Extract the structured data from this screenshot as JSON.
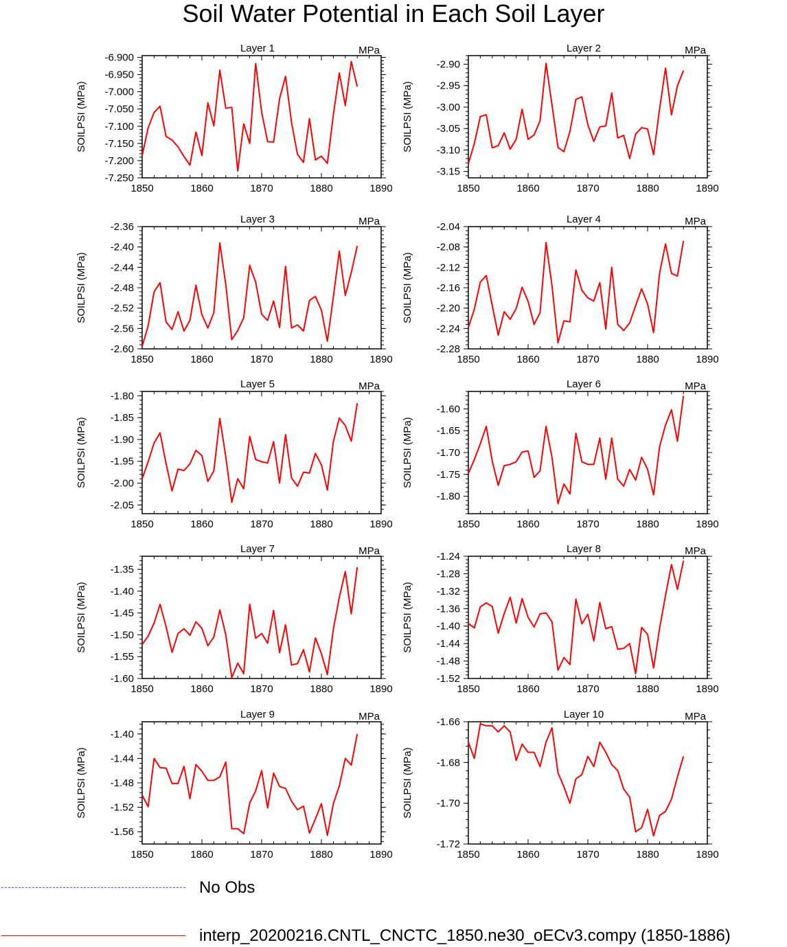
{
  "title": "Soil Water Potential in Each Soil Layer",
  "legend": [
    {
      "label": "No Obs",
      "color": "#4a5cf0",
      "style": "dashed"
    },
    {
      "label": "interp_20200216.CNTL_CNCTC_1850.ne30_oECv3.compy (1850-1886)",
      "color": "#ff0000",
      "style": "solid"
    }
  ],
  "chart_data": [
    {
      "type": "line",
      "title": "Layer 1",
      "units": "MPa",
      "ylabel": "SOILPSI  (MPa)",
      "ylim": [
        -7.25,
        -6.895
      ],
      "yticks": [
        -6.9,
        -6.95,
        -7.0,
        -7.05,
        -7.1,
        -7.15,
        -7.2,
        -7.25
      ],
      "ytick_labels": [
        "-6.900",
        "-6.950",
        "-7.000",
        "-7.050",
        "-7.100",
        "-7.150",
        "-7.200",
        "-7.250"
      ],
      "xlim": [
        1850,
        1890
      ],
      "xticks": [
        1850,
        1860,
        1870,
        1880,
        1890
      ],
      "series_color": "#ff0000",
      "x": [
        1850,
        1851,
        1852,
        1853,
        1854,
        1855,
        1856,
        1857,
        1858,
        1859,
        1860,
        1861,
        1862,
        1863,
        1864,
        1865,
        1866,
        1867,
        1868,
        1869,
        1870,
        1871,
        1872,
        1873,
        1874,
        1875,
        1876,
        1877,
        1878,
        1879,
        1880,
        1881,
        1882,
        1883,
        1884,
        1885,
        1886
      ],
      "values": [
        -7.185,
        -7.105,
        -7.06,
        -7.042,
        -7.13,
        -7.14,
        -7.16,
        -7.188,
        -7.213,
        -7.117,
        -7.185,
        -7.032,
        -7.099,
        -6.937,
        -7.048,
        -7.045,
        -7.23,
        -7.093,
        -7.15,
        -6.918,
        -7.059,
        -7.145,
        -7.146,
        -7.02,
        -6.955,
        -7.089,
        -7.182,
        -7.205,
        -7.078,
        -7.198,
        -7.187,
        -7.208,
        -7.067,
        -6.945,
        -7.04,
        -6.912,
        -6.985
      ]
    },
    {
      "type": "line",
      "title": "Layer 2",
      "units": "MPa",
      "ylabel": "SOILPSI  (MPa)",
      "ylim": [
        -3.165,
        -2.88
      ],
      "yticks": [
        -2.9,
        -2.95,
        -3.0,
        -3.05,
        -3.1,
        -3.15
      ],
      "ytick_labels": [
        "-2.90",
        "-2.95",
        "-3.00",
        "-3.05",
        "-3.10",
        "-3.15"
      ],
      "xlim": [
        1850,
        1890
      ],
      "xticks": [
        1850,
        1860,
        1870,
        1880,
        1890
      ],
      "series_color": "#ff0000",
      "x": [
        1850,
        1851,
        1852,
        1853,
        1854,
        1855,
        1856,
        1857,
        1858,
        1859,
        1860,
        1861,
        1862,
        1863,
        1864,
        1865,
        1866,
        1867,
        1868,
        1869,
        1870,
        1871,
        1872,
        1873,
        1874,
        1875,
        1876,
        1877,
        1878,
        1879,
        1880,
        1881,
        1882,
        1883,
        1884,
        1885,
        1886
      ],
      "values": [
        -3.132,
        -3.085,
        -3.022,
        -3.018,
        -3.095,
        -3.09,
        -3.06,
        -3.098,
        -3.075,
        -3.005,
        -3.075,
        -3.065,
        -3.032,
        -2.898,
        -2.995,
        -3.094,
        -3.104,
        -3.057,
        -2.982,
        -2.976,
        -3.041,
        -3.08,
        -3.046,
        -3.044,
        -2.967,
        -3.072,
        -3.066,
        -3.12,
        -3.063,
        -3.048,
        -3.051,
        -3.111,
        -3.005,
        -2.909,
        -3.018,
        -2.95,
        -2.915
      ]
    },
    {
      "type": "line",
      "title": "Layer 3",
      "units": "MPa",
      "ylabel": "SOILPSI  (MPa)",
      "ylim": [
        -2.6,
        -2.36
      ],
      "yticks": [
        -2.36,
        -2.4,
        -2.44,
        -2.48,
        -2.52,
        -2.56,
        -2.6
      ],
      "ytick_labels": [
        "-2.36",
        "-2.40",
        "-2.44",
        "-2.48",
        "-2.52",
        "-2.56",
        "-2.60"
      ],
      "xlim": [
        1850,
        1890
      ],
      "xticks": [
        1850,
        1860,
        1870,
        1880,
        1890
      ],
      "series_color": "#ff0000",
      "x": [
        1850,
        1851,
        1852,
        1853,
        1854,
        1855,
        1856,
        1857,
        1858,
        1859,
        1860,
        1861,
        1862,
        1863,
        1864,
        1865,
        1866,
        1867,
        1868,
        1869,
        1870,
        1871,
        1872,
        1873,
        1874,
        1875,
        1876,
        1877,
        1878,
        1879,
        1880,
        1881,
        1882,
        1883,
        1884,
        1885,
        1886
      ],
      "values": [
        -2.595,
        -2.555,
        -2.488,
        -2.47,
        -2.547,
        -2.562,
        -2.527,
        -2.565,
        -2.544,
        -2.475,
        -2.533,
        -2.559,
        -2.529,
        -2.392,
        -2.474,
        -2.582,
        -2.564,
        -2.539,
        -2.436,
        -2.469,
        -2.532,
        -2.544,
        -2.506,
        -2.558,
        -2.438,
        -2.559,
        -2.553,
        -2.565,
        -2.505,
        -2.497,
        -2.524,
        -2.585,
        -2.498,
        -2.408,
        -2.495,
        -2.45,
        -2.398
      ]
    },
    {
      "type": "line",
      "title": "Layer 4",
      "units": "MPa",
      "ylabel": "SOILPSI  (MPa)",
      "ylim": [
        -2.28,
        -2.04
      ],
      "yticks": [
        -2.04,
        -2.08,
        -2.12,
        -2.16,
        -2.2,
        -2.24,
        -2.28
      ],
      "ytick_labels": [
        "-2.04",
        "-2.08",
        "-2.12",
        "-2.16",
        "-2.20",
        "-2.24",
        "-2.28"
      ],
      "xlim": [
        1850,
        1890
      ],
      "xticks": [
        1850,
        1860,
        1870,
        1880,
        1890
      ],
      "series_color": "#ff0000",
      "x": [
        1850,
        1851,
        1852,
        1853,
        1854,
        1855,
        1856,
        1857,
        1858,
        1859,
        1860,
        1861,
        1862,
        1863,
        1864,
        1865,
        1866,
        1867,
        1868,
        1869,
        1870,
        1871,
        1872,
        1873,
        1874,
        1875,
        1876,
        1877,
        1878,
        1879,
        1880,
        1881,
        1882,
        1883,
        1884,
        1885,
        1886
      ],
      "values": [
        -2.238,
        -2.202,
        -2.149,
        -2.136,
        -2.195,
        -2.253,
        -2.207,
        -2.222,
        -2.201,
        -2.159,
        -2.187,
        -2.232,
        -2.209,
        -2.071,
        -2.156,
        -2.268,
        -2.225,
        -2.227,
        -2.125,
        -2.165,
        -2.18,
        -2.186,
        -2.15,
        -2.241,
        -2.12,
        -2.232,
        -2.244,
        -2.229,
        -2.195,
        -2.162,
        -2.192,
        -2.248,
        -2.132,
        -2.074,
        -2.132,
        -2.137,
        -2.068
      ]
    },
    {
      "type": "line",
      "title": "Layer 5",
      "units": "MPa",
      "ylabel": "SOILPSI  (MPa)",
      "ylim": [
        -2.07,
        -1.79
      ],
      "yticks": [
        -1.8,
        -1.85,
        -1.9,
        -1.95,
        -2.0,
        -2.05
      ],
      "ytick_labels": [
        "-1.80",
        "-1.85",
        "-1.90",
        "-1.95",
        "-2.00",
        "-2.05"
      ],
      "xlim": [
        1850,
        1890
      ],
      "xticks": [
        1850,
        1860,
        1870,
        1880,
        1890
      ],
      "series_color": "#ff0000",
      "x": [
        1850,
        1851,
        1852,
        1853,
        1854,
        1855,
        1856,
        1857,
        1858,
        1859,
        1860,
        1861,
        1862,
        1863,
        1864,
        1865,
        1866,
        1867,
        1868,
        1869,
        1870,
        1871,
        1872,
        1873,
        1874,
        1875,
        1876,
        1877,
        1878,
        1879,
        1880,
        1881,
        1882,
        1883,
        1884,
        1885,
        1886
      ],
      "values": [
        -1.99,
        -1.951,
        -1.908,
        -1.885,
        -1.955,
        -2.018,
        -1.968,
        -1.971,
        -1.956,
        -1.925,
        -1.937,
        -1.996,
        -1.972,
        -1.852,
        -1.94,
        -2.044,
        -1.99,
        -2.013,
        -1.893,
        -1.946,
        -1.951,
        -1.954,
        -1.905,
        -2.0,
        -1.889,
        -1.988,
        -2.007,
        -1.975,
        -1.977,
        -1.932,
        -1.958,
        -2.016,
        -1.905,
        -1.851,
        -1.868,
        -1.904,
        -1.817
      ]
    },
    {
      "type": "line",
      "title": "Layer 6",
      "units": "MPa",
      "ylabel": "SOILPSI  (MPa)",
      "ylim": [
        -1.84,
        -1.56
      ],
      "yticks": [
        -1.6,
        -1.65,
        -1.7,
        -1.75,
        -1.8
      ],
      "ytick_labels": [
        "-1.60",
        "-1.65",
        "-1.70",
        "-1.75",
        "-1.80"
      ],
      "xlim": [
        1850,
        1890
      ],
      "xticks": [
        1850,
        1860,
        1870,
        1880,
        1890
      ],
      "series_color": "#ff0000",
      "x": [
        1850,
        1851,
        1852,
        1853,
        1854,
        1855,
        1856,
        1857,
        1858,
        1859,
        1860,
        1861,
        1862,
        1863,
        1864,
        1865,
        1866,
        1867,
        1868,
        1869,
        1870,
        1871,
        1872,
        1873,
        1874,
        1875,
        1876,
        1877,
        1878,
        1879,
        1880,
        1881,
        1882,
        1883,
        1884,
        1885,
        1886
      ],
      "values": [
        -1.748,
        -1.716,
        -1.68,
        -1.64,
        -1.72,
        -1.775,
        -1.73,
        -1.727,
        -1.721,
        -1.699,
        -1.696,
        -1.757,
        -1.742,
        -1.64,
        -1.711,
        -1.817,
        -1.772,
        -1.795,
        -1.656,
        -1.721,
        -1.727,
        -1.727,
        -1.667,
        -1.761,
        -1.667,
        -1.761,
        -1.777,
        -1.739,
        -1.763,
        -1.711,
        -1.738,
        -1.797,
        -1.687,
        -1.637,
        -1.602,
        -1.674,
        -1.57
      ]
    },
    {
      "type": "line",
      "title": "Layer 7",
      "units": "MPa",
      "ylabel": "SOILPSI  (MPa)",
      "ylim": [
        -1.6,
        -1.32
      ],
      "yticks": [
        -1.35,
        -1.4,
        -1.45,
        -1.5,
        -1.55,
        -1.6
      ],
      "ytick_labels": [
        "-1.35",
        "-1.40",
        "-1.45",
        "-1.50",
        "-1.55",
        "-1.60"
      ],
      "xlim": [
        1850,
        1890
      ],
      "xticks": [
        1850,
        1860,
        1870,
        1880,
        1890
      ],
      "series_color": "#ff0000",
      "x": [
        1850,
        1851,
        1852,
        1853,
        1854,
        1855,
        1856,
        1857,
        1858,
        1859,
        1860,
        1861,
        1862,
        1863,
        1864,
        1865,
        1866,
        1867,
        1868,
        1869,
        1870,
        1871,
        1872,
        1873,
        1874,
        1875,
        1876,
        1877,
        1878,
        1879,
        1880,
        1881,
        1882,
        1883,
        1884,
        1885,
        1886
      ],
      "values": [
        -1.522,
        -1.503,
        -1.473,
        -1.43,
        -1.481,
        -1.54,
        -1.497,
        -1.486,
        -1.501,
        -1.47,
        -1.485,
        -1.525,
        -1.505,
        -1.443,
        -1.5,
        -1.598,
        -1.565,
        -1.589,
        -1.43,
        -1.508,
        -1.497,
        -1.519,
        -1.444,
        -1.541,
        -1.477,
        -1.569,
        -1.566,
        -1.534,
        -1.585,
        -1.507,
        -1.543,
        -1.591,
        -1.487,
        -1.414,
        -1.355,
        -1.452,
        -1.345
      ]
    },
    {
      "type": "line",
      "title": "Layer 8",
      "units": "MPa",
      "ylabel": "SOILPSI  (MPa)",
      "ylim": [
        -1.52,
        -1.24
      ],
      "yticks": [
        -1.24,
        -1.28,
        -1.32,
        -1.36,
        -1.4,
        -1.44,
        -1.48,
        -1.52
      ],
      "ytick_labels": [
        "-1.24",
        "-1.28",
        "-1.32",
        "-1.36",
        "-1.40",
        "-1.44",
        "-1.48",
        "-1.52"
      ],
      "xlim": [
        1850,
        1890
      ],
      "xticks": [
        1850,
        1860,
        1870,
        1880,
        1890
      ],
      "series_color": "#ff0000",
      "x": [
        1850,
        1851,
        1852,
        1853,
        1854,
        1855,
        1856,
        1857,
        1858,
        1859,
        1860,
        1861,
        1862,
        1863,
        1864,
        1865,
        1866,
        1867,
        1868,
        1869,
        1870,
        1871,
        1872,
        1873,
        1874,
        1875,
        1876,
        1877,
        1878,
        1879,
        1880,
        1881,
        1882,
        1883,
        1884,
        1885,
        1886
      ],
      "values": [
        -1.394,
        -1.404,
        -1.356,
        -1.347,
        -1.355,
        -1.416,
        -1.371,
        -1.334,
        -1.393,
        -1.337,
        -1.38,
        -1.402,
        -1.372,
        -1.37,
        -1.39,
        -1.501,
        -1.472,
        -1.488,
        -1.338,
        -1.395,
        -1.373,
        -1.434,
        -1.346,
        -1.406,
        -1.401,
        -1.453,
        -1.451,
        -1.44,
        -1.509,
        -1.403,
        -1.419,
        -1.496,
        -1.406,
        -1.33,
        -1.259,
        -1.316,
        -1.25
      ]
    },
    {
      "type": "line",
      "title": "Layer 9",
      "units": "MPa",
      "ylabel": "SOILPSI  (MPa)",
      "ylim": [
        -1.58,
        -1.38
      ],
      "yticks": [
        -1.4,
        -1.44,
        -1.48,
        -1.52,
        -1.56
      ],
      "ytick_labels": [
        "-1.40",
        "-1.44",
        "-1.48",
        "-1.52",
        "-1.56"
      ],
      "xlim": [
        1850,
        1890
      ],
      "xticks": [
        1850,
        1860,
        1870,
        1880,
        1890
      ],
      "series_color": "#ff0000",
      "x": [
        1850,
        1851,
        1852,
        1853,
        1854,
        1855,
        1856,
        1857,
        1858,
        1859,
        1860,
        1861,
        1862,
        1863,
        1864,
        1865,
        1866,
        1867,
        1868,
        1869,
        1870,
        1871,
        1872,
        1873,
        1874,
        1875,
        1876,
        1877,
        1878,
        1879,
        1880,
        1881,
        1882,
        1883,
        1884,
        1885,
        1886
      ],
      "values": [
        -1.5,
        -1.519,
        -1.44,
        -1.455,
        -1.456,
        -1.481,
        -1.481,
        -1.453,
        -1.506,
        -1.45,
        -1.461,
        -1.476,
        -1.476,
        -1.47,
        -1.446,
        -1.555,
        -1.555,
        -1.563,
        -1.513,
        -1.493,
        -1.46,
        -1.521,
        -1.464,
        -1.486,
        -1.489,
        -1.51,
        -1.524,
        -1.518,
        -1.562,
        -1.539,
        -1.514,
        -1.566,
        -1.514,
        -1.485,
        -1.44,
        -1.451,
        -1.4
      ]
    },
    {
      "type": "line",
      "title": "Layer 10",
      "units": "MPa",
      "ylabel": "SOILPSI  (MPa)",
      "ylim": [
        -1.72,
        -1.66
      ],
      "yticks": [
        -1.66,
        -1.68,
        -1.7,
        -1.72
      ],
      "ytick_labels": [
        "-1.66",
        "-1.68",
        "-1.70",
        "-1.72"
      ],
      "xlim": [
        1850,
        1890
      ],
      "xticks": [
        1850,
        1860,
        1870,
        1880,
        1890
      ],
      "series_color": "#ff0000",
      "x": [
        1850,
        1851,
        1852,
        1853,
        1854,
        1855,
        1856,
        1857,
        1858,
        1859,
        1860,
        1861,
        1862,
        1863,
        1864,
        1865,
        1866,
        1867,
        1868,
        1869,
        1870,
        1871,
        1872,
        1873,
        1874,
        1875,
        1876,
        1877,
        1878,
        1879,
        1880,
        1881,
        1882,
        1883,
        1884,
        1885,
        1886
      ],
      "values": [
        -1.67,
        -1.678,
        -1.661,
        -1.662,
        -1.662,
        -1.665,
        -1.662,
        -1.665,
        -1.679,
        -1.671,
        -1.675,
        -1.675,
        -1.682,
        -1.67,
        -1.663,
        -1.685,
        -1.692,
        -1.7,
        -1.688,
        -1.686,
        -1.677,
        -1.682,
        -1.67,
        -1.675,
        -1.681,
        -1.684,
        -1.693,
        -1.697,
        -1.714,
        -1.712,
        -1.703,
        -1.716,
        -1.706,
        -1.704,
        -1.698,
        -1.687,
        -1.677
      ]
    }
  ]
}
